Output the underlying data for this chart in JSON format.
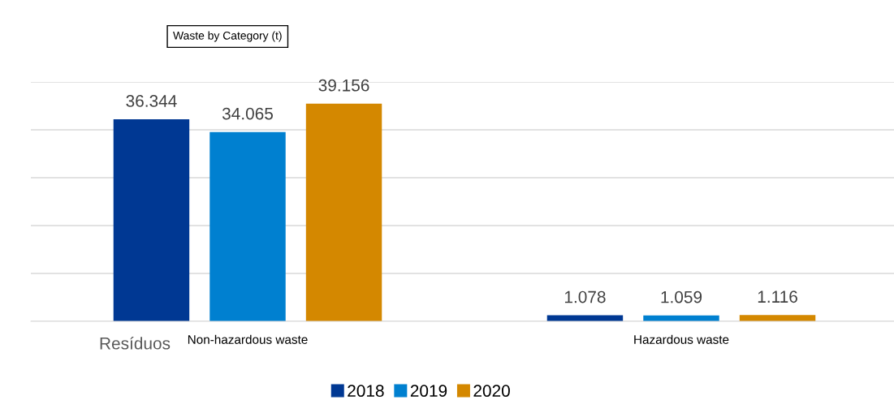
{
  "chart_data": {
    "type": "bar",
    "title": "Waste by Category (t)",
    "categories": [
      "Non-hazardous waste",
      "Hazardous waste"
    ],
    "series": [
      {
        "name": "2018",
        "color": "#003893",
        "values": [
          36344,
          1078
        ],
        "value_labels": [
          "36.344",
          "1.078"
        ]
      },
      {
        "name": "2019",
        "color": "#0080d0",
        "values": [
          34065,
          1059
        ],
        "value_labels": [
          "34.065",
          "1.059"
        ]
      },
      {
        "name": "2020",
        "color": "#d48800",
        "values": [
          39156,
          1116
        ],
        "value_labels": [
          "39.156",
          "1.116"
        ]
      }
    ],
    "annotations": [
      "Resíduos"
    ],
    "grid": "y",
    "legend": "bottom"
  }
}
